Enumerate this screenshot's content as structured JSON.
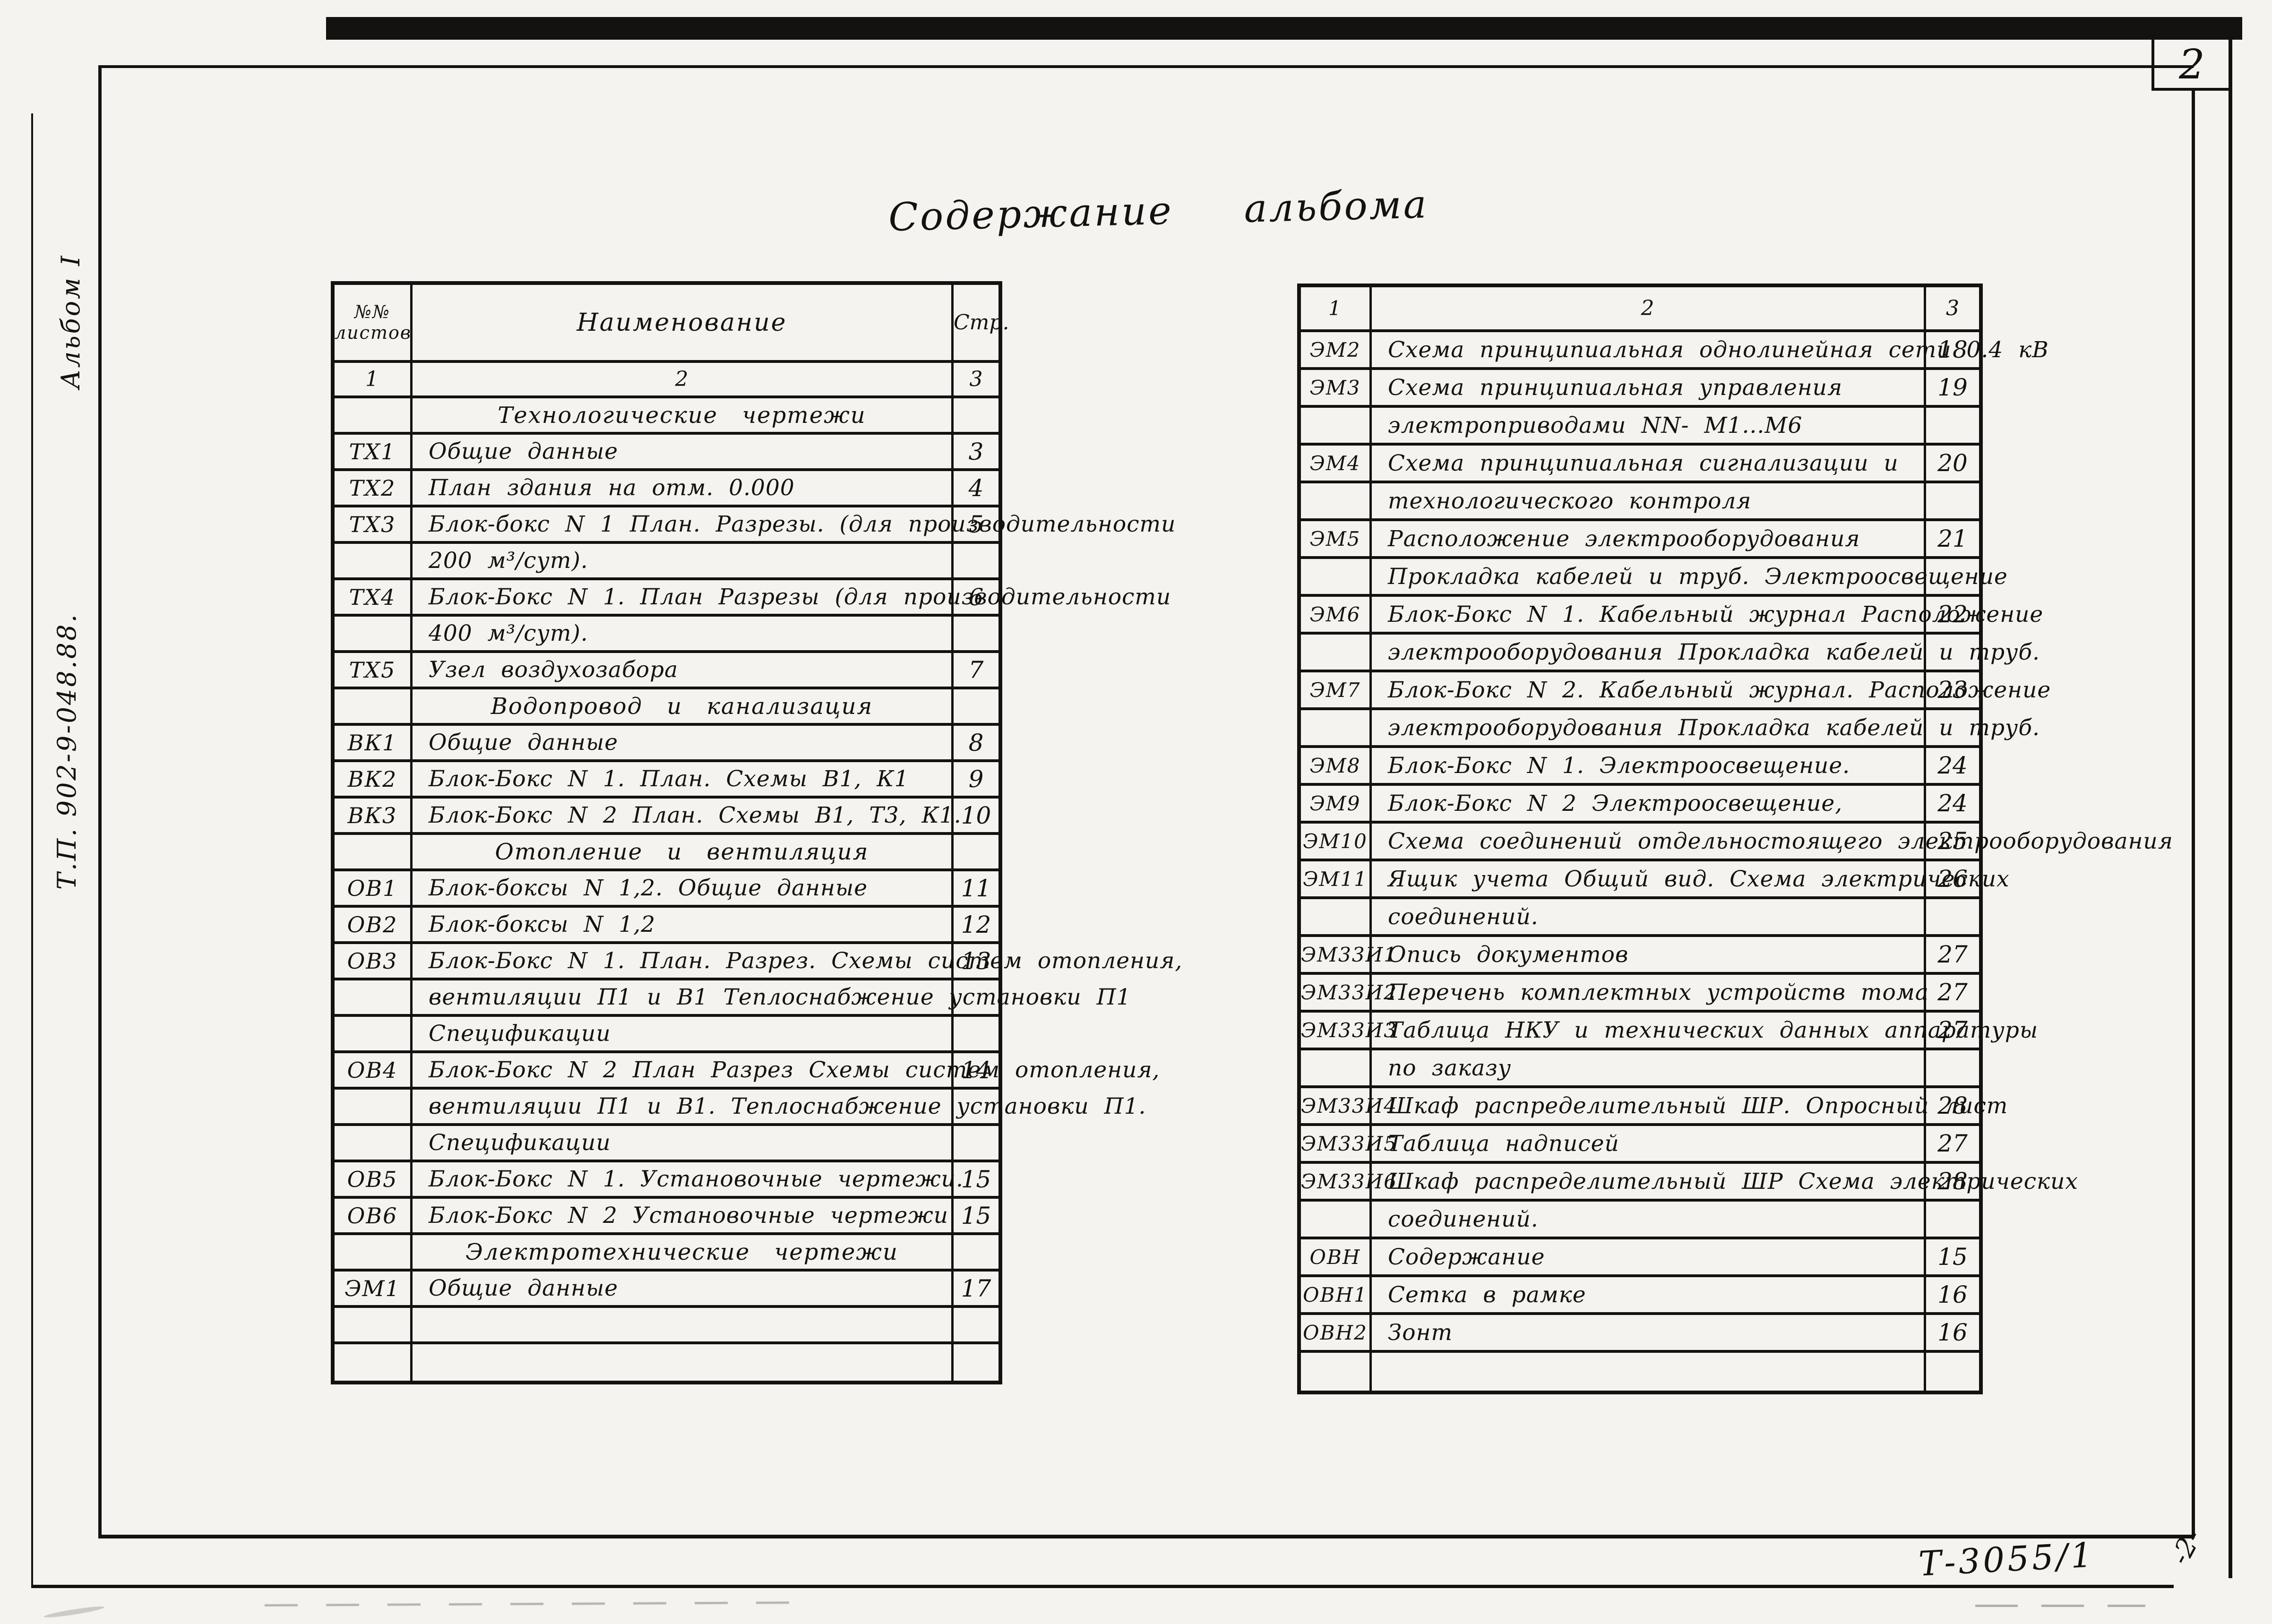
{
  "page": {
    "sheet_number": "2",
    "title": "Содержание альбома",
    "margin_album_label": "Альбом I",
    "margin_project_code": "Т.П. 902-9-048.88.",
    "footer_doc_number": "Т-3055/1",
    "footer_page_mark": "-2-"
  },
  "left_table": {
    "header": {
      "col1_line1": "№№",
      "col1_line2": "листов",
      "col2": "Наименование",
      "col3": "Стр."
    },
    "number_row": [
      "1",
      "2",
      "3"
    ],
    "rows": [
      {
        "type": "section",
        "text": "Технологические чертежи"
      },
      {
        "type": "item",
        "id": "ТХ1",
        "text": "Общие данные",
        "page": "3"
      },
      {
        "type": "item",
        "id": "ТХ2",
        "text": "План здания на отм. 0.000",
        "page": "4"
      },
      {
        "type": "item",
        "id": "ТХ3",
        "text": "Блок-бокс N 1  План. Разрезы. (для производительности",
        "page": "5"
      },
      {
        "type": "cont",
        "text": "200 м³/сут)."
      },
      {
        "type": "item",
        "id": "ТХ4",
        "text": "Блок-Бокс N 1. План Разрезы (для производительности",
        "page": "6"
      },
      {
        "type": "cont",
        "text": "400 м³/сут)."
      },
      {
        "type": "item",
        "id": "ТХ5",
        "text": "Узел воздухозабора",
        "page": "7"
      },
      {
        "type": "section",
        "text": "Водопровод и канализация"
      },
      {
        "type": "item",
        "id": "ВК1",
        "text": "Общие данные",
        "page": "8"
      },
      {
        "type": "item",
        "id": "ВК2",
        "text": "Блок-Бокс N 1. План. Схемы  В1, К1",
        "page": "9"
      },
      {
        "type": "item",
        "id": "ВК3",
        "text": "Блок-Бокс N 2  План. Схемы  В1, Т3, К1.",
        "page": "10"
      },
      {
        "type": "section",
        "text": "Отопление и вентиляция"
      },
      {
        "type": "item",
        "id": "ОВ1",
        "text": "Блок-боксы N 1,2. Общие данные",
        "page": "11"
      },
      {
        "type": "item",
        "id": "ОВ2",
        "text": "Блок-боксы N 1,2",
        "page": "12"
      },
      {
        "type": "item",
        "id": "ОВ3",
        "text": "Блок-Бокс N 1. План. Разрез. Схемы систем отопления,",
        "page": "13"
      },
      {
        "type": "cont",
        "text": "вентиляции П1 и В1  Теплоснабжение установки П1"
      },
      {
        "type": "cont",
        "text": "Спецификации"
      },
      {
        "type": "item",
        "id": "ОВ4",
        "text": "Блок-Бокс N 2  План Разрез Схемы систем отопления,",
        "page": "14"
      },
      {
        "type": "cont",
        "text": "вентиляции П1 и В1.  Теплоснабжение установки П1."
      },
      {
        "type": "cont",
        "text": "Спецификации"
      },
      {
        "type": "item",
        "id": "ОВ5",
        "text": "Блок-Бокс N 1.  Установочные чертежи.",
        "page": "15"
      },
      {
        "type": "item",
        "id": "ОВ6",
        "text": "Блок-Бокс N 2  Установочные чертежи",
        "page": "15"
      },
      {
        "type": "section",
        "text": "Электротехнические чертежи"
      },
      {
        "type": "item",
        "id": "ЭМ1",
        "text": "Общие данные",
        "page": "17"
      },
      {
        "type": "empty"
      },
      {
        "type": "empty"
      }
    ]
  },
  "right_table": {
    "number_row": [
      "1",
      "2",
      "3"
    ],
    "rows": [
      {
        "type": "item",
        "id": "ЭМ2",
        "text": "Схема принципиальная однолинейная сети 0.4 кВ",
        "page": "18"
      },
      {
        "type": "item",
        "id": "ЭМ3",
        "text": "Схема принципиальная управления",
        "page": "19"
      },
      {
        "type": "cont",
        "text": "электроприводами  NN- М1...М6"
      },
      {
        "type": "item",
        "id": "ЭМ4",
        "text": "Схема принципиальная сигнализации и",
        "page": "20"
      },
      {
        "type": "cont",
        "text": "технологического контроля"
      },
      {
        "type": "item",
        "id": "ЭМ5",
        "text": "Расположение электрооборудования",
        "page": "21"
      },
      {
        "type": "cont",
        "text": "Прокладка кабелей и труб. Электроосвещение"
      },
      {
        "type": "item",
        "id": "ЭМ6",
        "text": "Блок-Бокс N 1. Кабельный журнал  Расположение",
        "page": "22"
      },
      {
        "type": "cont",
        "text": "электрооборудования  Прокладка кабелей и труб."
      },
      {
        "type": "item",
        "id": "ЭМ7",
        "text": "Блок-Бокс N 2. Кабельный журнал. Расположение",
        "page": "23"
      },
      {
        "type": "cont",
        "text": "электрооборудования  Прокладка кабелей и труб."
      },
      {
        "type": "item",
        "id": "ЭМ8",
        "text": "Блок-Бокс N 1. Электроосвещение.",
        "page": "24"
      },
      {
        "type": "item",
        "id": "ЭМ9",
        "text": "Блок-Бокс N 2  Электроосвещение,",
        "page": "24"
      },
      {
        "type": "item",
        "id": "ЭМ10",
        "text": "Схема соединений отдельностоящего электрооборудования",
        "page": "25"
      },
      {
        "type": "item",
        "id": "ЭМ11",
        "text": "Ящик учета  Общий вид. Схема электрических",
        "page": "26"
      },
      {
        "type": "cont",
        "text": "соединений."
      },
      {
        "type": "item",
        "id": "ЭМ33И1",
        "text": "Опись документов",
        "page": "27"
      },
      {
        "type": "item",
        "id": "ЭМ33И2",
        "text": "Перечень комплектных устройств тома",
        "page": "27"
      },
      {
        "type": "item",
        "id": "ЭМ33И3",
        "text": "Таблица НКУ и технических данных аппаратуры",
        "page": "27"
      },
      {
        "type": "cont",
        "text": "по заказу"
      },
      {
        "type": "item",
        "id": "ЭМ33И4",
        "text": "Шкаф распределительный ШР. Опросный лист",
        "page": "28"
      },
      {
        "type": "item",
        "id": "ЭМ33И5",
        "text": "Таблица надписей",
        "page": "27"
      },
      {
        "type": "item",
        "id": "ЭМ33И6",
        "text": "Шкаф распределительный ШР Схема электрических",
        "page": "28"
      },
      {
        "type": "cont",
        "text": "соединений."
      },
      {
        "type": "item",
        "id": "ОВН",
        "text": "Содержание",
        "page": "15"
      },
      {
        "type": "item",
        "id": "ОВН1",
        "text": "Сетка в рамке",
        "page": "16"
      },
      {
        "type": "item",
        "id": "ОВН2",
        "text": "Зонт",
        "page": "16"
      },
      {
        "type": "empty"
      }
    ]
  }
}
